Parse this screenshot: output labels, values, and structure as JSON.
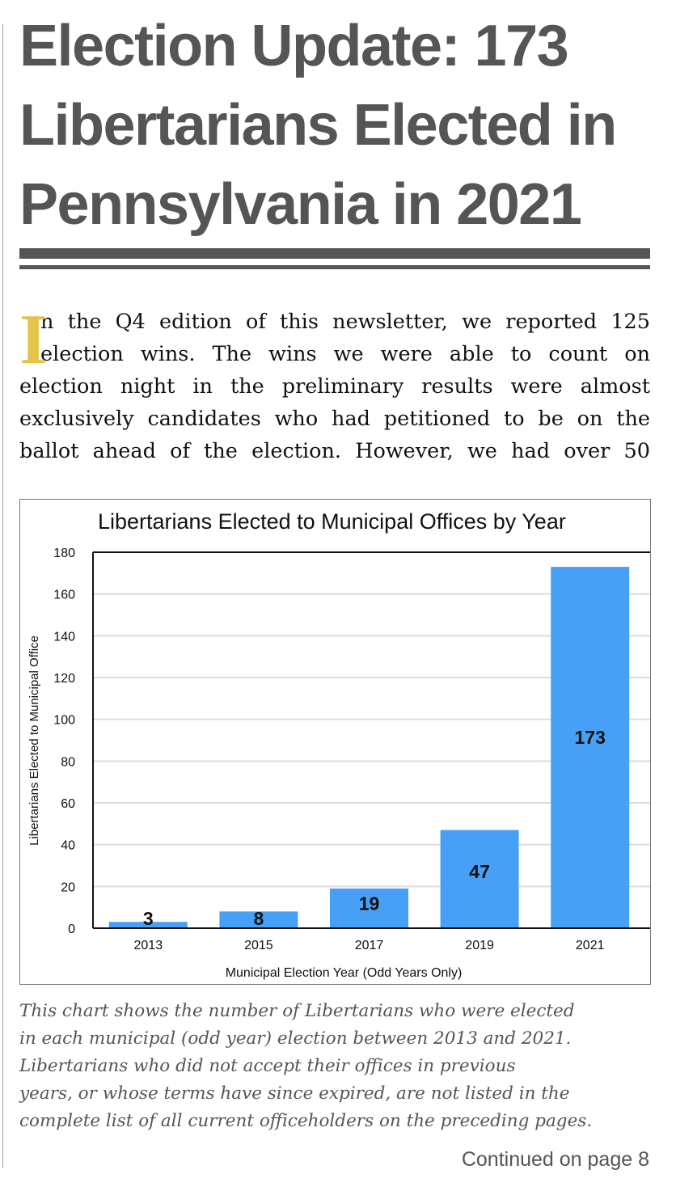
{
  "article": {
    "title_lines": [
      "Election Update: 173",
      "Libertarians Elected in",
      "Pennsylvania in 2021"
    ],
    "drop_cap": "I",
    "body_lines": [
      "n the Q4 edition of this newsletter, we reported 125",
      "election wins.  The wins we were able to count on",
      "election night in the preliminary results were almost",
      "exclusively candidates who had petitioned to be on the",
      "ballot ahead of the election.  However, we had over 50"
    ],
    "caption_lines": [
      "This chart shows the number of Libertarians who were elected",
      "in each municipal (odd year) election between 2013 and 2021.",
      "Libertarians who did not accept their offices in previous",
      "years, or whose terms have since expired, are not listed in the",
      "complete list of all current officeholders on the preceding pages."
    ],
    "continued": "Continued on page 8"
  },
  "colors": {
    "bar": "#47a0f5",
    "drop_cap": "#e3c448",
    "title": "#555555"
  },
  "chart_data": {
    "type": "bar",
    "title": "Libertarians Elected to Municipal Offices by Year",
    "xlabel": "Municipal Election Year (Odd Years Only)",
    "ylabel": "Libertarians Elected to Municipal Office",
    "categories": [
      "2013",
      "2015",
      "2017",
      "2019",
      "2021"
    ],
    "values": [
      3,
      8,
      19,
      47,
      173
    ],
    "data_labels": [
      "3",
      "8",
      "19",
      "47",
      "173"
    ],
    "ylim": [
      0,
      180
    ],
    "yticks": [
      0,
      20,
      40,
      60,
      80,
      100,
      120,
      140,
      160,
      180
    ],
    "grid": true,
    "legend": "none"
  }
}
